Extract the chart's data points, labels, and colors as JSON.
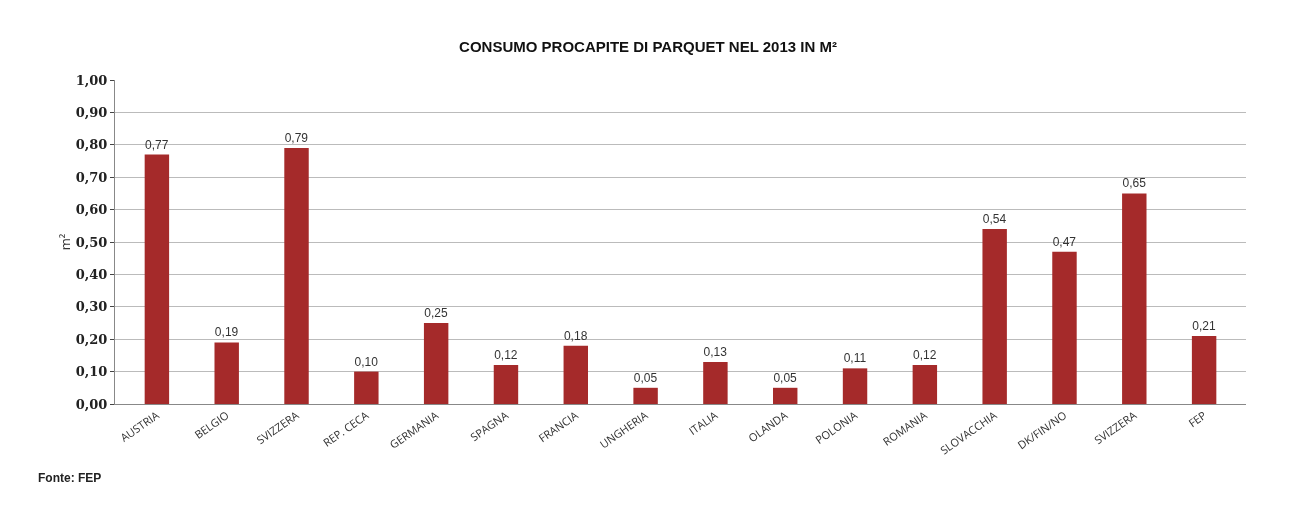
{
  "chart_data": {
    "type": "bar",
    "title": "CONSUMO PROCAPITE DI PARQUET NEL 2013 IN M²",
    "ylabel": "m²",
    "categories": [
      "AUSTRIA",
      "BELGIO",
      "SVIZZERA",
      "REP. CECA",
      "GERMANIA",
      "SPAGNA",
      "FRANCIA",
      "UNGHERIA",
      "ITALIA",
      "OLANDA",
      "POLONIA",
      "ROMANIA",
      "SLOVACCHIA",
      "DK/FIN/NO",
      "SVIZZERA",
      "FEP"
    ],
    "values": [
      0.77,
      0.19,
      0.79,
      0.1,
      0.25,
      0.12,
      0.18,
      0.05,
      0.13,
      0.05,
      0.11,
      0.12,
      0.54,
      0.47,
      0.65,
      0.21
    ],
    "value_labels": [
      "0,77",
      "0,19",
      "0,79",
      "0,10",
      "0,25",
      "0,12",
      "0,18",
      "0,05",
      "0,13",
      "0,05",
      "0,11",
      "0,12",
      "0,54",
      "0,47",
      "0,65",
      "0,21"
    ],
    "color": "#a52a2a",
    "ylim": [
      0,
      1
    ],
    "yticks": [
      {
        "value": 0,
        "label": "0,00"
      },
      {
        "value": 0.1,
        "label": "0,10"
      },
      {
        "value": 0.2,
        "label": "0,20"
      },
      {
        "value": 0.3,
        "label": "0,30"
      },
      {
        "value": 0.4,
        "label": "0,40"
      },
      {
        "value": 0.5,
        "label": "0,50"
      },
      {
        "value": 0.6,
        "label": "0,60"
      },
      {
        "value": 0.7,
        "label": "0,70"
      },
      {
        "value": 0.8,
        "label": "0,80"
      },
      {
        "value": 0.9,
        "label": "0,90"
      },
      {
        "value": 1,
        "label": "1,00"
      }
    ],
    "grid": "y",
    "annotations": [
      "Fonte: FEP"
    ]
  }
}
